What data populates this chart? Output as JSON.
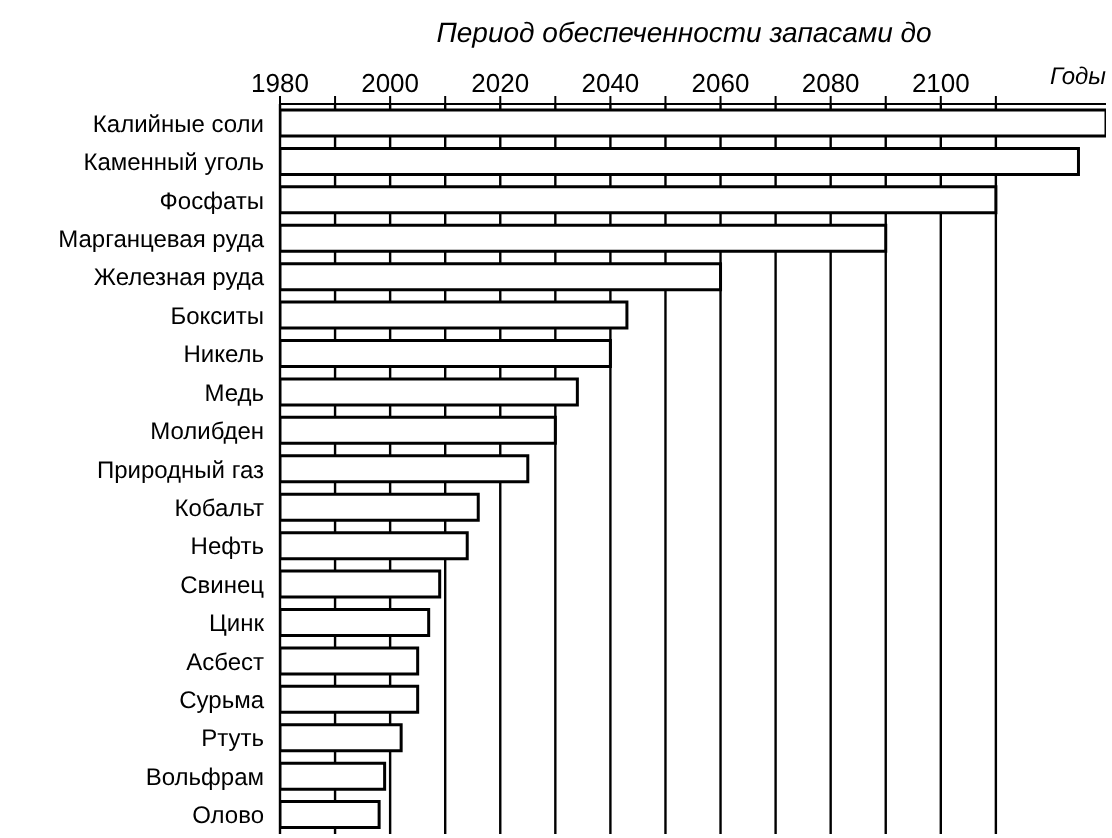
{
  "chart_data": {
    "type": "bar",
    "orientation": "horizontal",
    "title": "Период обеспеченности запасами до",
    "xlabel": "Годы",
    "categories": [
      "Калийные соли",
      "Каменный уголь",
      "Фосфаты",
      "Марганцевая руда",
      "Железная руда",
      "Бокситы",
      "Никель",
      "Медь",
      "Молибден",
      "Природный газ",
      "Кобальт",
      "Нефть",
      "Свинец",
      "Цинк",
      "Асбест",
      "Сурьма",
      "Ртуть",
      "Вольфрам",
      "Олово"
    ],
    "values": [
      2130,
      2125,
      2110,
      2090,
      2060,
      2043,
      2040,
      2034,
      2030,
      2025,
      2016,
      2014,
      2009,
      2007,
      2005,
      2005,
      2002,
      1999,
      1998
    ],
    "color": "#ffffff",
    "xlim": [
      1980,
      2130
    ],
    "xticks": [
      1980,
      {
        "value": 1990,
        "label": null
      },
      2000,
      {
        "value": 2010,
        "label": null
      },
      2020,
      {
        "value": 2030,
        "label": null
      },
      2040,
      {
        "value": 2050,
        "label": null
      },
      2060,
      {
        "value": 2070,
        "label": null
      },
      2080,
      {
        "value": 2090,
        "label": null
      },
      2100,
      {
        "value": 2110,
        "label": null
      }
    ],
    "grid": "x",
    "legend": false
  }
}
